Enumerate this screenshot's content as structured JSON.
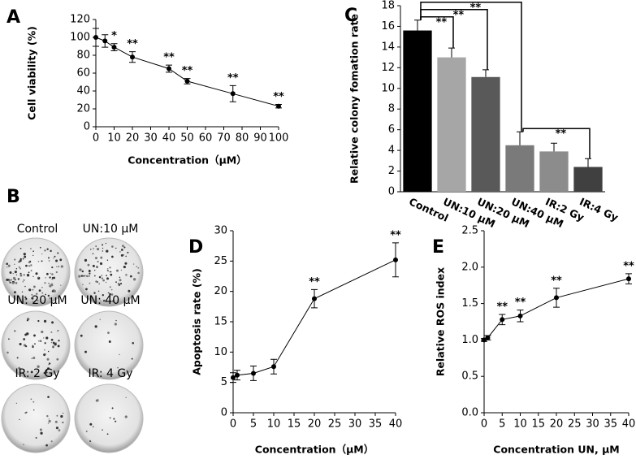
{
  "chart_data": [
    {
      "type": "line",
      "panel": "A",
      "x_label": "Concentration（μM）",
      "y_label": "Cell viability (%)",
      "x": [
        0,
        5,
        10,
        20,
        40,
        50,
        75,
        100
      ],
      "values": [
        100,
        96,
        89,
        78,
        65,
        51,
        37,
        23
      ],
      "errors": [
        10,
        7,
        4,
        6,
        4,
        3,
        9,
        2
      ],
      "annotations": [
        null,
        null,
        "*",
        "**",
        "**",
        "**",
        "**",
        "**"
      ],
      "color": "#000000",
      "xlim": [
        0,
        100
      ],
      "xticks": [
        0,
        10,
        20,
        30,
        40,
        50,
        60,
        70,
        80,
        90,
        100
      ],
      "ylim": [
        0,
        120
      ],
      "yticks": [
        0,
        20,
        40,
        60,
        80,
        100,
        120
      ]
    },
    {
      "type": "bar",
      "panel": "C",
      "y_label": "Relative colony fomation rate",
      "categories": [
        "Control",
        "UN:10 μM",
        "UN:20 μM",
        "UN:40 μM",
        "IR:2 Gy",
        "IR:4 Gy"
      ],
      "values": [
        15.6,
        13.0,
        11.1,
        4.5,
        3.9,
        2.4
      ],
      "errors": [
        1.0,
        0.9,
        0.7,
        1.3,
        0.8,
        0.8
      ],
      "colors": [
        "#000000",
        "#a6a6a6",
        "#595959",
        "#7a7a7a",
        "#8c8c8c",
        "#404040"
      ],
      "brackets": [
        {
          "from": "Control",
          "to": "UN:10 μM",
          "text": "**"
        },
        {
          "from": "Control",
          "to": "UN:20 μM",
          "text": "**"
        },
        {
          "from": "Control",
          "to": "UN:40 μM",
          "text": "**"
        },
        {
          "from": "UN:40 μM",
          "to": "IR:4 Gy",
          "text": "**"
        }
      ],
      "ylim": [
        0,
        18
      ],
      "yticks": [
        0,
        2,
        4,
        6,
        8,
        10,
        12,
        14,
        16,
        18
      ]
    },
    {
      "type": "line",
      "panel": "D",
      "x_label": "Concentration（μM）",
      "y_label": "Apoptosis rate (%)",
      "x": [
        0,
        1,
        5,
        10,
        20,
        40
      ],
      "values": [
        5.8,
        6.2,
        6.5,
        7.6,
        18.8,
        25.2
      ],
      "errors": [
        0.8,
        0.8,
        1.2,
        1.2,
        1.5,
        2.8
      ],
      "annotations": [
        null,
        null,
        null,
        null,
        "**",
        "**"
      ],
      "color": "#000000",
      "xlim": [
        0,
        40
      ],
      "xticks": [
        0,
        5,
        10,
        15,
        20,
        25,
        30,
        35,
        40
      ],
      "ylim": [
        0,
        30
      ],
      "yticks": [
        0,
        5,
        10,
        15,
        20,
        25,
        30
      ]
    },
    {
      "type": "line",
      "panel": "E",
      "x_label": "Concentration UN, μM",
      "y_label": "Relative ROS index",
      "x": [
        0,
        1,
        5,
        10,
        20,
        40
      ],
      "values": [
        1.0,
        1.03,
        1.28,
        1.33,
        1.58,
        1.84
      ],
      "errors": [
        0.02,
        0.03,
        0.07,
        0.08,
        0.13,
        0.07
      ],
      "annotations": [
        null,
        null,
        "**",
        "**",
        "**",
        "**"
      ],
      "color": "#000000",
      "xlim": [
        0,
        40
      ],
      "xticks": [
        0,
        5,
        10,
        15,
        20,
        25,
        30,
        35,
        40
      ],
      "ylim": [
        0,
        2.5
      ],
      "yticks": [
        {
          "value": 0,
          "label": "0.0"
        },
        0.5,
        {
          "value": 1,
          "label": "1.0"
        },
        1.5,
        {
          "value": 2,
          "label": "2.0"
        },
        2.5
      ]
    }
  ],
  "photo_panel": {
    "panel": "B",
    "labels": [
      "Control",
      "UN:10 μM",
      "UN: 20 μM",
      "UN: 40 μM",
      "IR: 2 Gy",
      "IR: 4 Gy"
    ]
  }
}
